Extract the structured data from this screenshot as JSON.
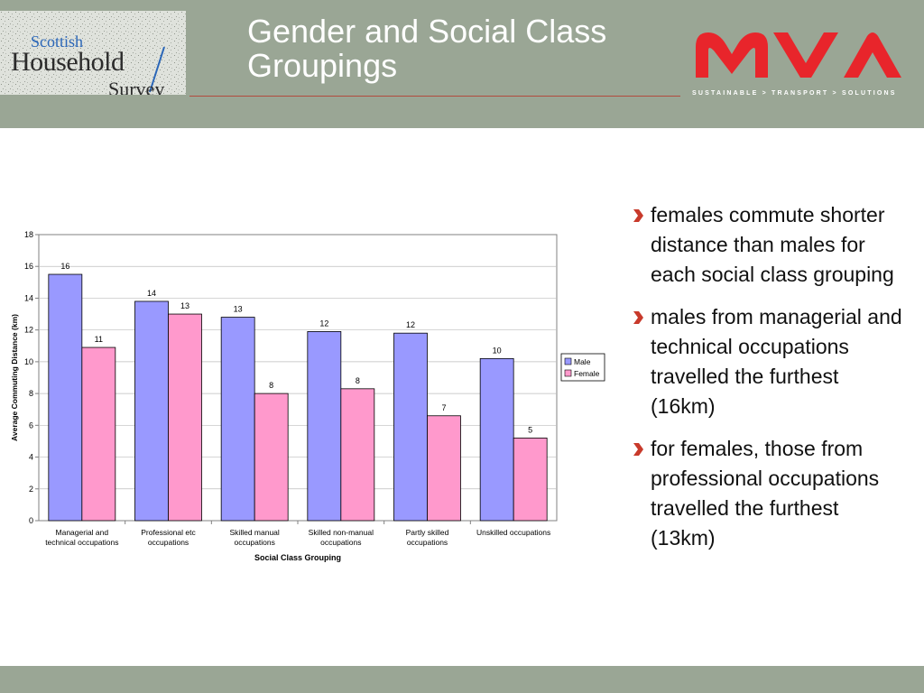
{
  "header": {
    "title": "Gender and Social Class Groupings",
    "logo": {
      "line1": "Scottish",
      "line2": "Household",
      "line3": "Survey"
    },
    "brand_logo_text": "MVA",
    "tagline": "SUSTAINABLE > TRANSPORT > SOLUTIONS"
  },
  "colors": {
    "header_bg": "#9aa695",
    "male": "#9999ff",
    "female": "#ff99cc",
    "brand_red": "#e8252b"
  },
  "chart_data": {
    "type": "bar",
    "categories": [
      [
        "Managerial and",
        "technical occupations"
      ],
      [
        "Professional etc",
        "occupations"
      ],
      [
        "Skilled manual",
        "occupations"
      ],
      [
        "Skilled non-manual",
        "occupations"
      ],
      [
        "Partly skilled",
        "occupations"
      ],
      [
        "Unskilled occupations"
      ]
    ],
    "series": [
      {
        "name": "Male",
        "color": "#9999ff",
        "values": [
          15.5,
          13.8,
          12.8,
          11.9,
          11.8,
          10.2
        ],
        "labels": [
          "16",
          "14",
          "13",
          "12",
          "12",
          "10"
        ]
      },
      {
        "name": "Female",
        "color": "#ff99cc",
        "values": [
          10.9,
          13.0,
          8.0,
          8.3,
          6.6,
          5.2
        ],
        "labels": [
          "11",
          "13",
          "8",
          "8",
          "7",
          "5"
        ]
      }
    ],
    "xlabel": "Social Class Grouping",
    "ylabel": "Average Commuting Distance (km)",
    "ylim": [
      0,
      18
    ],
    "yticks": [
      0,
      2,
      4,
      6,
      8,
      10,
      12,
      14,
      16,
      18
    ],
    "grid": true,
    "legend": "right"
  },
  "bullets": [
    "females commute shorter distance than males for each social class grouping",
    "males from managerial and technical occupations travelled the furthest (16km)",
    "for females, those from professional occupations travelled the furthest (13km)"
  ]
}
